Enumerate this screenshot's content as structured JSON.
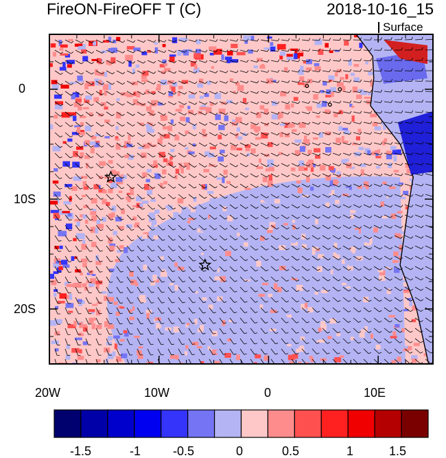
{
  "title_left": "FireON-FireOFF T (C)",
  "title_right": "2018-10-16_15",
  "level_label": "Surface",
  "map": {
    "lon_range": [
      -20,
      15
    ],
    "lat_range": [
      -25,
      5
    ],
    "lon_ticks": [
      {
        "value": -20,
        "label": "20W"
      },
      {
        "value": -10,
        "label": "10W"
      },
      {
        "value": 0,
        "label": "0"
      },
      {
        "value": 10,
        "label": "10E"
      }
    ],
    "lat_ticks": [
      {
        "value": 0,
        "label": "0"
      },
      {
        "value": -10,
        "label": "10S"
      },
      {
        "value": -20,
        "label": "20S"
      }
    ],
    "stars": [
      {
        "name": "star-marker-north",
        "lon": -14.4,
        "lat": -8.0
      },
      {
        "name": "star-marker-south",
        "lon": -5.8,
        "lat": -16.0
      }
    ]
  },
  "colorbar": {
    "labels": [
      "-1.5",
      "-1",
      "-0.5",
      "0",
      "0.5",
      "1",
      "1.5"
    ],
    "colors": [
      "#00006e",
      "#0000a8",
      "#0000cc",
      "#0000f0",
      "#3434fa",
      "#7474f4",
      "#b4b4f4",
      "#ffc8c8",
      "#ff8c8c",
      "#ff5050",
      "#ff2020",
      "#f00000",
      "#b40000",
      "#7a0000"
    ]
  }
}
